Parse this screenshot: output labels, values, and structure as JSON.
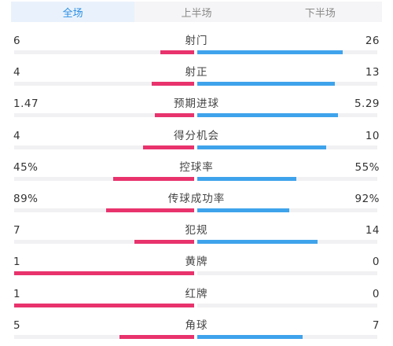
{
  "tabs": [
    {
      "label": "全场",
      "active": true
    },
    {
      "label": "上半场",
      "active": false
    },
    {
      "label": "下半场",
      "active": false
    }
  ],
  "colors": {
    "home_bar": "#e8336d",
    "away_bar": "#3fa3ec",
    "active_tab_text": "#2b8fe3",
    "active_tab_bg": "#e9f2fc"
  },
  "stats": [
    {
      "label": "射门",
      "home": "6",
      "away": "26",
      "home_frac": 0.19,
      "away_frac": 0.81
    },
    {
      "label": "射正",
      "home": "4",
      "away": "13",
      "home_frac": 0.235,
      "away_frac": 0.765
    },
    {
      "label": "预期进球",
      "home": "1.47",
      "away": "5.29",
      "home_frac": 0.22,
      "away_frac": 0.78
    },
    {
      "label": "得分机会",
      "home": "4",
      "away": "10",
      "home_frac": 0.286,
      "away_frac": 0.714
    },
    {
      "label": "控球率",
      "home": "45%",
      "away": "55%",
      "home_frac": 0.45,
      "away_frac": 0.55
    },
    {
      "label": "传球成功率",
      "home": "89%",
      "away": "92%",
      "home_frac": 0.49,
      "away_frac": 0.51
    },
    {
      "label": "犯规",
      "home": "7",
      "away": "14",
      "home_frac": 0.333,
      "away_frac": 0.667
    },
    {
      "label": "黄牌",
      "home": "1",
      "away": "0",
      "home_frac": 1.0,
      "away_frac": 0.0
    },
    {
      "label": "红牌",
      "home": "1",
      "away": "0",
      "home_frac": 1.0,
      "away_frac": 0.0
    },
    {
      "label": "角球",
      "home": "5",
      "away": "7",
      "home_frac": 0.417,
      "away_frac": 0.583
    }
  ]
}
